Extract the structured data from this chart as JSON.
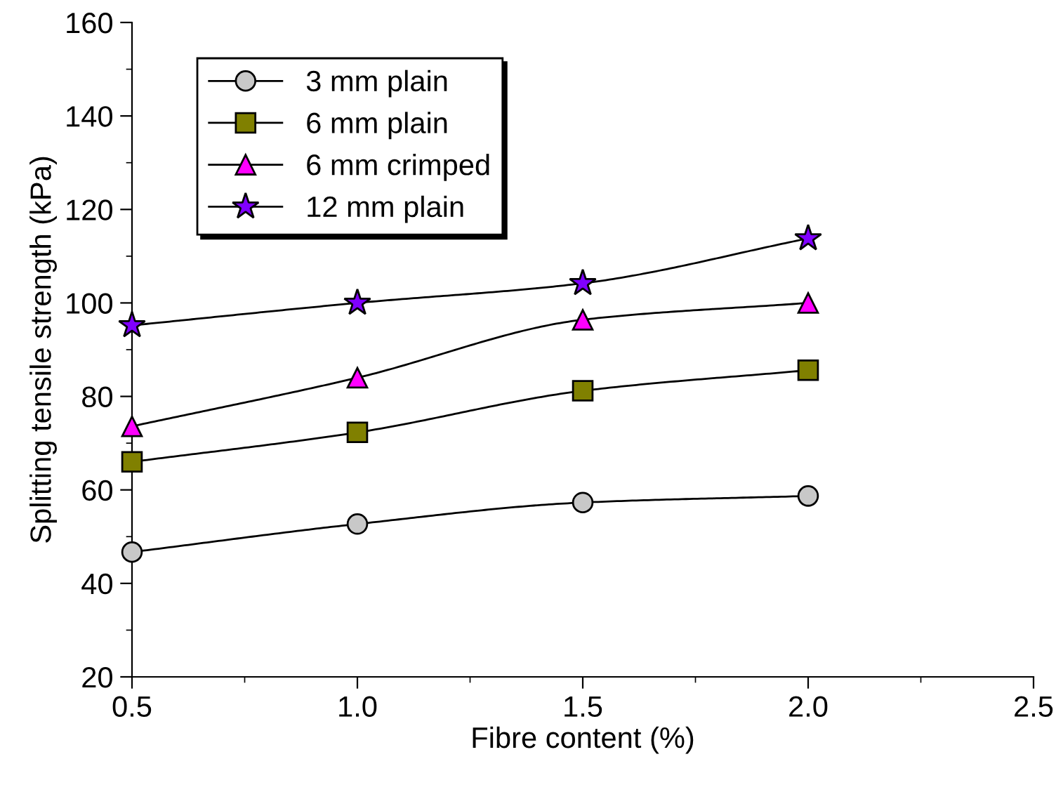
{
  "chart_data": {
    "type": "line",
    "xlabel": "Fibre content (%)",
    "ylabel": "Splitting tensile strength (kPa)",
    "x": [
      0.5,
      1.0,
      1.5,
      2.0
    ],
    "series": [
      {
        "name": "3 mm plain",
        "color": "#c8c8c8",
        "marker": "circle",
        "values": [
          46.7,
          52.7,
          57.3,
          58.7
        ]
      },
      {
        "name": "6 mm plain",
        "color": "#808000",
        "marker": "square",
        "values": [
          66,
          72.3,
          81.2,
          85.6
        ]
      },
      {
        "name": "6 mm crimped",
        "color": "#ff00ff",
        "marker": "triangle",
        "values": [
          73.6,
          84,
          96.4,
          100
        ]
      },
      {
        "name": "12 mm plain",
        "color": "#8000ff",
        "marker": "star",
        "values": [
          95.2,
          100,
          104.2,
          113.8
        ]
      }
    ],
    "xlim": [
      0.5,
      2.5
    ],
    "xticks": [
      {
        "value": 0.5,
        "label": "0.5"
      },
      {
        "value": 1.0,
        "label": "1.0"
      },
      {
        "value": 1.5,
        "label": "1.5"
      },
      {
        "value": 2.0,
        "label": "2.0"
      },
      {
        "value": 2.5,
        "label": "2.5"
      }
    ],
    "ylim": [
      20,
      160
    ],
    "yticks": [
      20,
      40,
      60,
      80,
      100,
      120,
      140,
      160
    ],
    "grid": false,
    "legend": "top left",
    "line_style": "solid"
  }
}
